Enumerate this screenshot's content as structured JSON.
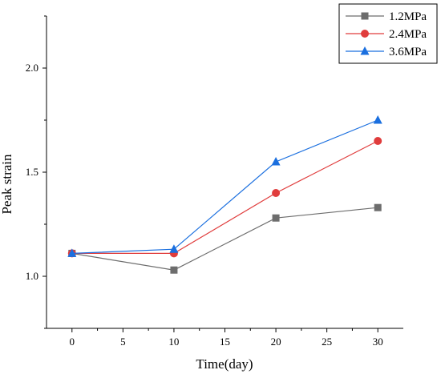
{
  "chart_data": {
    "type": "line",
    "xlabel": "Time(day)",
    "ylabel": "Peak strain",
    "xlim": [
      -2.5,
      32.5
    ],
    "ylim": [
      0.75,
      2.25
    ],
    "x_ticks": [
      0,
      5,
      10,
      15,
      20,
      25,
      30
    ],
    "y_ticks": [
      1.0,
      1.5,
      2.0
    ],
    "y_tick_labels": [
      "1.0",
      "1.5",
      "2.0"
    ],
    "grid": false,
    "legend_position": "top-right",
    "x": [
      0,
      10,
      20,
      30
    ],
    "series": [
      {
        "name": "1.2MPa",
        "color": "#6d6d6d",
        "marker": "square",
        "values": [
          1.11,
          1.03,
          1.28,
          1.33
        ]
      },
      {
        "name": "2.4MPa",
        "color": "#e03c3c",
        "marker": "circle",
        "values": [
          1.11,
          1.11,
          1.4,
          1.65
        ]
      },
      {
        "name": "3.6MPa",
        "color": "#1a6fdf",
        "marker": "triangle",
        "values": [
          1.11,
          1.13,
          1.55,
          1.75
        ]
      }
    ]
  }
}
